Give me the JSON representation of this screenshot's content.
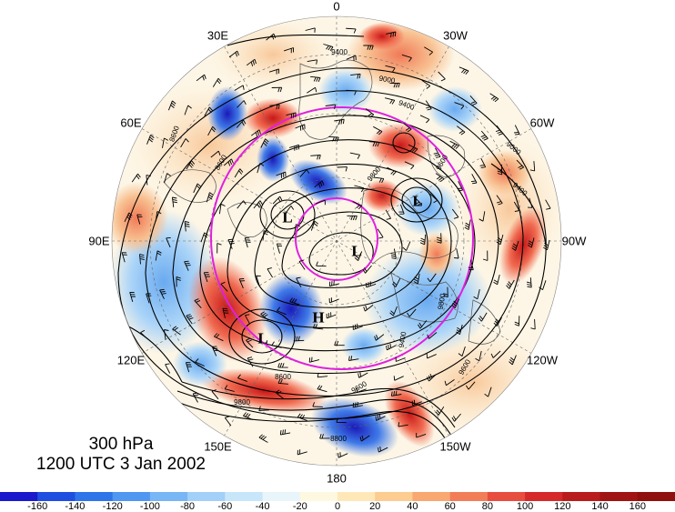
{
  "title": {
    "level": "300 hPa",
    "time": "1200 UTC 3 Jan 2002"
  },
  "longitude_labels": [
    {
      "label": "0",
      "lon": 0
    },
    {
      "label": "30W",
      "lon": -30
    },
    {
      "label": "60W",
      "lon": -60
    },
    {
      "label": "90W",
      "lon": -90
    },
    {
      "label": "120W",
      "lon": -120
    },
    {
      "label": "150W",
      "lon": -150
    },
    {
      "label": "180",
      "lon": 180
    },
    {
      "label": "150E",
      "lon": 150
    },
    {
      "label": "120E",
      "lon": 120
    },
    {
      "label": "90E",
      "lon": 90
    },
    {
      "label": "60E",
      "lon": 60
    },
    {
      "label": "30E",
      "lon": 30
    }
  ],
  "pressure_centers": [
    {
      "id": "low-center-1",
      "label": "L"
    },
    {
      "id": "low-center-2",
      "label": "L"
    },
    {
      "id": "low-center-3",
      "label": "L"
    },
    {
      "id": "low-center-4",
      "label": "L"
    },
    {
      "id": "high-center-1",
      "label": "H"
    }
  ],
  "contour_labels": [
    "9400",
    "9000",
    "8600",
    "8600",
    "9400",
    "9600",
    "9800",
    "9000",
    "9400",
    "9800",
    "9600",
    "9400",
    "8600",
    "9600",
    "9800",
    "8800"
  ],
  "colorbar": {
    "tick_labels": [
      "-160",
      "-140",
      "-120",
      "-100",
      "-80",
      "-60",
      "-40",
      "-20",
      "0",
      "20",
      "40",
      "60",
      "80",
      "100",
      "120",
      "140",
      "160"
    ],
    "colors": [
      "#1a1acc",
      "#1f4fe0",
      "#2f75ea",
      "#4f97f0",
      "#78b6f5",
      "#a3d0f8",
      "#c8e6fa",
      "#e8f6fb",
      "#fff8e0",
      "#ffe8b8",
      "#fccc90",
      "#f8a870",
      "#f27e58",
      "#e84e40",
      "#d42a2a",
      "#b81c1c",
      "#a01414",
      "#900f0f"
    ]
  },
  "colors": {
    "ring_magenta": "#e020e0",
    "contour": "#000000",
    "barb": "#000000"
  }
}
